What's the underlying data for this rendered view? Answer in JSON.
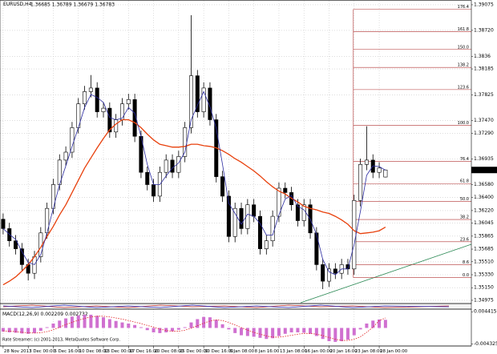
{
  "chart_data": {
    "type": "candlestick",
    "title": "EURUSD,H4",
    "bull_color": "#ffffff",
    "bear_color": "#000000",
    "candles": {
      "open": [
        1.361,
        1.3597,
        1.358,
        1.3569,
        1.3547,
        1.3535,
        1.3558,
        1.3591,
        1.3625,
        1.3658,
        1.3692,
        1.3703,
        1.3737,
        1.377,
        1.3787,
        1.3792,
        1.3759,
        1.3764,
        1.3731,
        1.3748,
        1.377,
        1.3776,
        1.3725,
        1.3675,
        1.3658,
        1.3642,
        1.3675,
        1.3692,
        1.3675,
        1.3697,
        1.3737,
        1.3809,
        1.3759,
        1.3792,
        1.3748,
        1.3669,
        1.3642,
        1.3586,
        1.3625,
        1.3597,
        1.363,
        1.3614,
        1.3569,
        1.358,
        1.3614,
        1.3653,
        1.3647,
        1.363,
        1.3608,
        1.363,
        1.3591,
        1.3547,
        1.3524,
        1.3541,
        1.3535,
        1.3547,
        1.3541,
        1.3636,
        1.3686,
        1.3692,
        1.3675,
        1.36685
      ],
      "high": [
        1.3618,
        1.3605,
        1.3588,
        1.3577,
        1.3555,
        1.3566,
        1.3599,
        1.3633,
        1.3666,
        1.37,
        1.3711,
        1.3745,
        1.3778,
        1.3795,
        1.381,
        1.38,
        1.3772,
        1.3772,
        1.3756,
        1.3778,
        1.3784,
        1.3784,
        1.3733,
        1.3683,
        1.3666,
        1.3683,
        1.37,
        1.37,
        1.3705,
        1.3745,
        1.3893,
        1.3817,
        1.38,
        1.38,
        1.3756,
        1.3677,
        1.365,
        1.3633,
        1.3633,
        1.3638,
        1.3638,
        1.3622,
        1.3588,
        1.3622,
        1.3661,
        1.3661,
        1.3655,
        1.3638,
        1.3638,
        1.3638,
        1.3599,
        1.3555,
        1.3549,
        1.3549,
        1.3555,
        1.3555,
        1.3644,
        1.3694,
        1.3739,
        1.37,
        1.3689,
        1.36789
      ],
      "low": [
        1.3589,
        1.3572,
        1.3561,
        1.3539,
        1.3525,
        1.3527,
        1.355,
        1.3583,
        1.3617,
        1.365,
        1.3684,
        1.3695,
        1.3729,
        1.3762,
        1.3779,
        1.3751,
        1.3751,
        1.3723,
        1.3723,
        1.374,
        1.3762,
        1.3717,
        1.3667,
        1.365,
        1.3634,
        1.3634,
        1.3667,
        1.3667,
        1.3667,
        1.3689,
        1.3729,
        1.3751,
        1.3751,
        1.374,
        1.3661,
        1.3634,
        1.3578,
        1.3578,
        1.3589,
        1.3589,
        1.3606,
        1.3561,
        1.3561,
        1.3572,
        1.3606,
        1.3639,
        1.3622,
        1.36,
        1.36,
        1.3583,
        1.3539,
        1.3513,
        1.3516,
        1.3527,
        1.3527,
        1.3533,
        1.3533,
        1.3628,
        1.3678,
        1.3667,
        1.3667,
        1.36679
      ],
      "close": [
        1.3597,
        1.358,
        1.3569,
        1.3547,
        1.3535,
        1.3558,
        1.3591,
        1.3625,
        1.3658,
        1.3692,
        1.3703,
        1.3737,
        1.377,
        1.3787,
        1.3792,
        1.3759,
        1.3764,
        1.3731,
        1.3748,
        1.377,
        1.3776,
        1.3725,
        1.3675,
        1.3658,
        1.3642,
        1.3675,
        1.3692,
        1.3675,
        1.3697,
        1.3737,
        1.3809,
        1.3759,
        1.3792,
        1.3748,
        1.3669,
        1.3642,
        1.3586,
        1.3625,
        1.3597,
        1.363,
        1.3614,
        1.3569,
        1.358,
        1.3614,
        1.3653,
        1.3647,
        1.363,
        1.3608,
        1.363,
        1.3591,
        1.3547,
        1.3524,
        1.3541,
        1.3535,
        1.3547,
        1.3541,
        1.3636,
        1.3686,
        1.3692,
        1.3675,
        1.3681,
        1.36783
      ]
    },
    "moving_averages": [
      {
        "color": "#e8400c",
        "values": [
          1.3519,
          1.3524,
          1.353,
          1.3538,
          1.3547,
          1.3558,
          1.3571,
          1.3586,
          1.36,
          1.3616,
          1.363,
          1.3647,
          1.3664,
          1.3681,
          1.3695,
          1.3709,
          1.3722,
          1.3734,
          1.3742,
          1.3748,
          1.3748,
          1.3744,
          1.3737,
          1.3728,
          1.372,
          1.3714,
          1.3712,
          1.371,
          1.371,
          1.3711,
          1.3714,
          1.3714,
          1.3712,
          1.3711,
          1.3709,
          1.3705,
          1.37,
          1.3694,
          1.3689,
          1.3683,
          1.3677,
          1.367,
          1.3662,
          1.3655,
          1.3649,
          1.3645,
          1.3639,
          1.3634,
          1.3628,
          1.3625,
          1.3623,
          1.362,
          1.3618,
          1.3614,
          1.3609,
          1.3603,
          1.3594,
          1.359,
          1.3591,
          1.3592,
          1.3594,
          1.3599
        ]
      },
      {
        "color": "#2a2aa0",
        "values": [
          1.3597,
          1.3589,
          1.3582,
          1.3565,
          1.355,
          1.3547,
          1.3561,
          1.3591,
          1.3625,
          1.3658,
          1.3684,
          1.3711,
          1.3737,
          1.3765,
          1.3783,
          1.3779,
          1.3772,
          1.3751,
          1.3748,
          1.375,
          1.3765,
          1.3757,
          1.3725,
          1.3686,
          1.3658,
          1.3658,
          1.367,
          1.3681,
          1.3688,
          1.3703,
          1.3748,
          1.3768,
          1.3787,
          1.3766,
          1.3736,
          1.3686,
          1.3632,
          1.3618,
          1.3603,
          1.3617,
          1.3614,
          1.3604,
          1.3588,
          1.3588,
          1.3616,
          1.3638,
          1.3643,
          1.3628,
          1.3623,
          1.361,
          1.3589,
          1.3554,
          1.3537,
          1.3533,
          1.3541,
          1.3541,
          1.3575,
          1.3621,
          1.3671,
          1.3684,
          1.3683,
          1.3678
        ]
      }
    ],
    "xlim": [
      -0.5,
      74.7
    ],
    "xticks": [
      {
        "value": 0,
        "label": "28 Nov 2013"
      },
      {
        "value": 4,
        "label": "3 Dec 00:00"
      },
      {
        "value": 8,
        "label": "5 Dec 16:00"
      },
      {
        "value": 12,
        "label": "10 Dec 08:00"
      },
      {
        "value": 16,
        "label": "13 Dec 00:00"
      },
      {
        "value": 20,
        "label": "17 Dec 16:00"
      },
      {
        "value": 24,
        "label": "20 Dec 08:00"
      },
      {
        "value": 28,
        "label": "25 Dec 00:00"
      },
      {
        "value": 32,
        "label": "30 Dec 16:00"
      },
      {
        "value": 36,
        "label": "6 Jan 08:00"
      },
      {
        "value": 40,
        "label": "8 Jan 16:00"
      },
      {
        "value": 44,
        "label": "13 Jan 08:00"
      },
      {
        "value": 48,
        "label": "16 Jan 00:00"
      },
      {
        "value": 52,
        "label": "20 Jan 16:00"
      },
      {
        "value": 56,
        "label": "23 Jan 08:00"
      },
      {
        "value": 60,
        "label": "28 Jan 00:00"
      }
    ],
    "ylim": [
      1.3493,
      1.3913
    ],
    "yticks": [
      1.39075,
      {
        "value": 1.3872,
        "label": "1.38720"
      },
      1.3836,
      1.38185,
      1.37825,
      {
        "value": 1.3747,
        "label": "1.37470"
      },
      {
        "value": 1.3729,
        "label": "1.37290"
      },
      1.36935,
      {
        "value": 1.3658,
        "label": "1.36580"
      },
      {
        "value": 1.364,
        "label": "1.36400"
      },
      {
        "value": 1.3622,
        "label": "1.36220"
      },
      1.36045,
      1.35865,
      1.35685,
      {
        "value": 1.3551,
        "label": "1.35510"
      },
      {
        "value": 1.3533,
        "label": "1.35330"
      },
      {
        "value": 1.3515,
        "label": "1.35150"
      },
      1.34975
    ],
    "grid": true,
    "fibo": {
      "color": "#b03030",
      "low": 1.3529,
      "high": 1.374,
      "levels": [
        176.4,
        161.8,
        {
          "value": 150,
          "label": "150.0"
        },
        138.2,
        123.6,
        {
          "value": 100,
          "label": "100.0"
        },
        76.4,
        61.8,
        {
          "value": 50,
          "label": "50.0"
        },
        38.2,
        23.6,
        8.6,
        {
          "value": 0,
          "label": "0.0"
        }
      ]
    },
    "macd": {
      "label": "MACD(12,26,9)",
      "hist_color": "#d070d0",
      "signal_color": "#e02020",
      "histogram": [
        -0.001,
        -0.0012,
        -0.0013,
        -0.0015,
        -0.0016,
        -0.0014,
        -0.0008,
        0.0002,
        0.0012,
        0.002,
        0.0026,
        0.0031,
        0.0034,
        0.0036,
        0.0036,
        0.0033,
        0.0029,
        0.0024,
        0.0019,
        0.0015,
        0.0012,
        0.0008,
        0.0002,
        -0.0006,
        -0.0012,
        -0.0014,
        -0.0012,
        -0.0009,
        -0.0005,
        0.0002,
        0.0015,
        0.0024,
        0.003,
        0.0029,
        0.0022,
        0.001,
        -0.0004,
        -0.0014,
        -0.002,
        -0.0022,
        -0.0024,
        -0.0027,
        -0.003,
        -0.0028,
        -0.0022,
        -0.0016,
        -0.0012,
        -0.0012,
        -0.0013,
        -0.0016,
        -0.0022,
        -0.003,
        -0.0036,
        -0.0038,
        -0.0036,
        -0.0032,
        -0.002,
        -0.0004,
        0.0012,
        0.002,
        0.0023,
        0.002209
      ],
      "signal": [
        -0.0008,
        -0.0009,
        -0.001,
        -0.0012,
        -0.0013,
        -0.0014,
        -0.0013,
        -0.001,
        -0.0005,
        0.0002,
        0.0009,
        0.0015,
        0.0021,
        0.0026,
        0.003,
        0.0032,
        0.0032,
        0.003,
        0.0027,
        0.0024,
        0.002,
        0.0016,
        0.0012,
        0.0007,
        0.0002,
        -0.0003,
        -0.0007,
        -0.0009,
        -0.0009,
        -0.0006,
        -0.0001,
        0.0006,
        0.0013,
        0.0019,
        0.0022,
        0.002,
        0.0015,
        0.0008,
        0.0001,
        -0.0006,
        -0.0012,
        -0.0017,
        -0.0022,
        -0.0025,
        -0.0025,
        -0.0023,
        -0.002,
        -0.0017,
        -0.0015,
        -0.0015,
        -0.0017,
        -0.0021,
        -0.0026,
        -0.0031,
        -0.0034,
        -0.0034,
        -0.0031,
        -0.0024,
        -0.0012,
        0.0002,
        0.002,
        0.002732
      ],
      "ylim": [
        -0.0047,
        0.0049
      ],
      "yticks": [
        0.004415,
        -0.004325
      ]
    },
    "footnote": "Rate Streamer; (c) 2001-2013, MetaQuotes Software Corp."
  }
}
